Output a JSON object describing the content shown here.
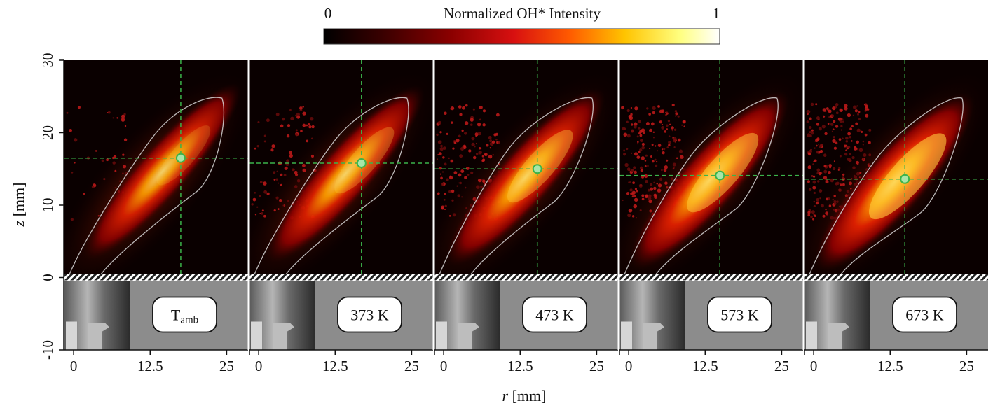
{
  "colorbar": {
    "title": "Normalized OH* Intensity",
    "min_label": "0",
    "max_label": "1",
    "colors": [
      "#000000",
      "#3a0000",
      "#8a0000",
      "#d81010",
      "#ff5a00",
      "#ffc400",
      "#ffff80",
      "#ffffff"
    ]
  },
  "axes": {
    "ylabel_var": "z",
    "ylabel_unit": " [mm]",
    "xlabel_var": "r",
    "xlabel_unit": " [mm]",
    "y_ticks": [
      {
        "value": 30,
        "label": "30"
      },
      {
        "value": 20,
        "label": "20"
      },
      {
        "value": 10,
        "label": "10"
      },
      {
        "value": 0,
        "label": "0"
      },
      {
        "value": -10,
        "label": "-10"
      }
    ],
    "x_ticks": [
      {
        "value": 0,
        "label": "0"
      },
      {
        "value": 12.5,
        "label": "12.5"
      },
      {
        "value": 25,
        "label": "25"
      }
    ],
    "x_range": [
      -1.5,
      28.5
    ],
    "y_range": [
      -10,
      30
    ]
  },
  "panels": [
    {
      "label_main": "T",
      "label_sub": "amb",
      "r_center": 17.5,
      "z_center": 16.5,
      "intensity": 0.7
    },
    {
      "label_main": "373 K",
      "label_sub": "",
      "r_center": 16.8,
      "z_center": 15.8,
      "intensity": 0.8
    },
    {
      "label_main": "473 K",
      "label_sub": "",
      "r_center": 15.3,
      "z_center": 15.0,
      "intensity": 0.9
    },
    {
      "label_main": "573 K",
      "label_sub": "",
      "r_center": 14.9,
      "z_center": 14.1,
      "intensity": 1.0
    },
    {
      "label_main": "673 K",
      "label_sub": "",
      "r_center": 14.9,
      "z_center": 13.6,
      "intensity": 1.05
    }
  ],
  "colors": {
    "crosshair": "#3bb34a",
    "marker_fill": "#a8e6a8",
    "contour": "#d8d8d8",
    "burner_bg": "#8c8c8c"
  }
}
